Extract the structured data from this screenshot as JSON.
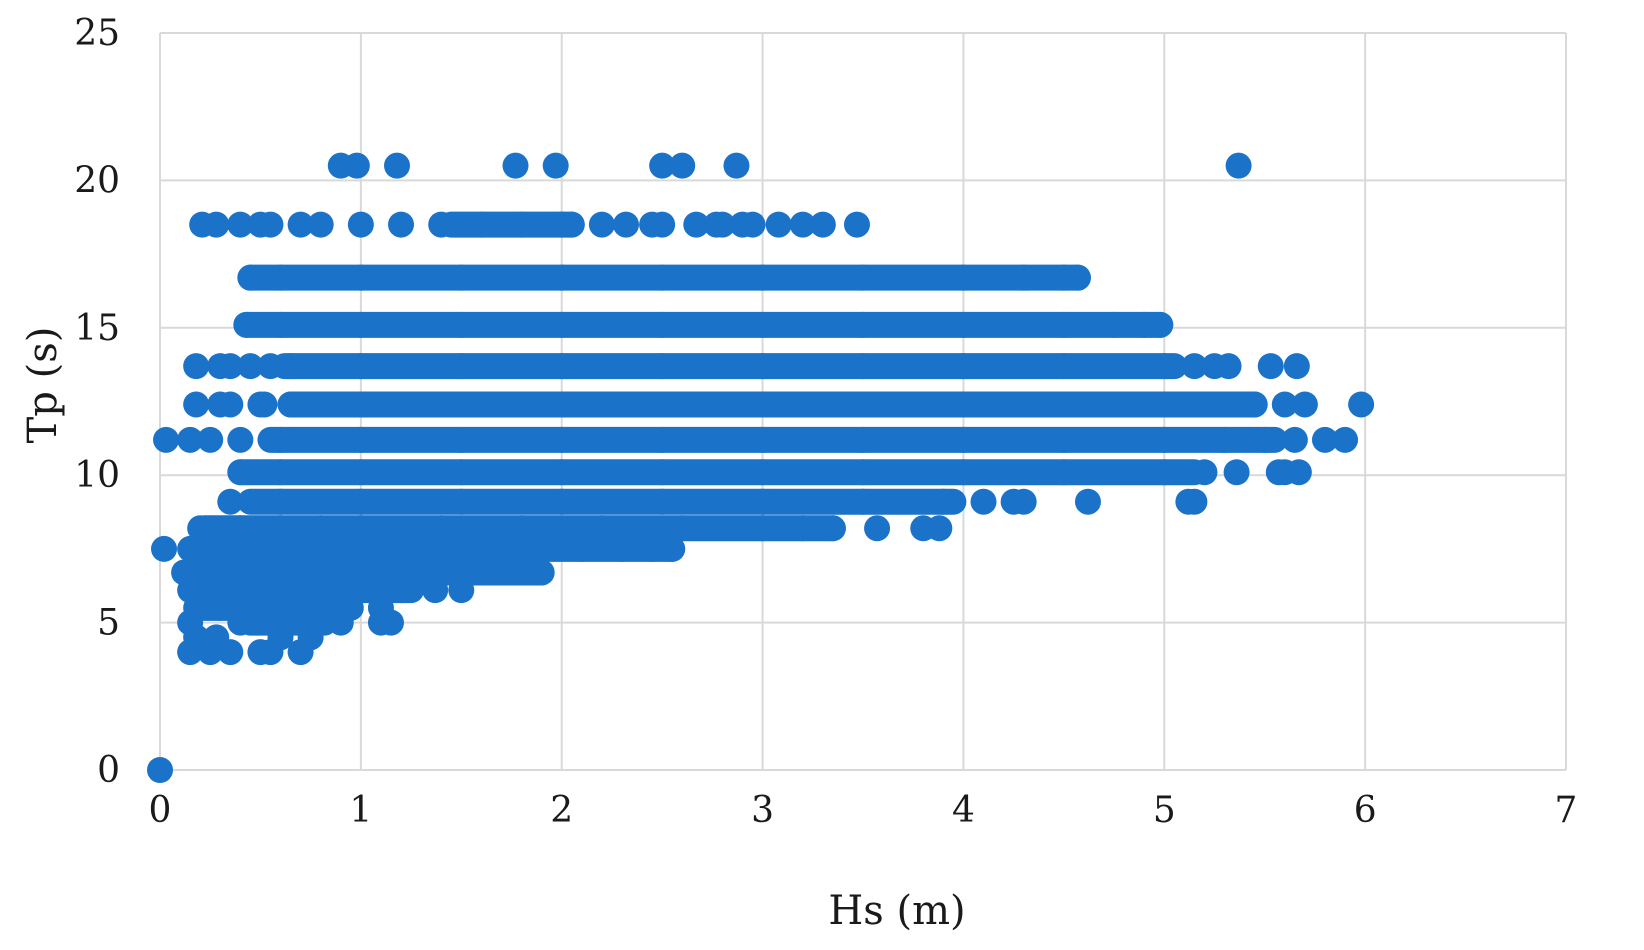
{
  "chart_data": {
    "type": "scatter",
    "title": "",
    "xlabel": "Hs (m)",
    "ylabel": "Tp (s)",
    "xlim": [
      0,
      7
    ],
    "ylim": [
      0,
      25
    ],
    "xticks": [
      0,
      1,
      2,
      3,
      4,
      5,
      6,
      7
    ],
    "yticks": [
      0,
      5,
      10,
      15,
      20,
      25
    ],
    "grid": true,
    "legend": "none",
    "colors": {
      "marker": "#1a73c8",
      "grid": "#d9d9d9",
      "text": "#1a1a1a"
    },
    "series": [
      {
        "points": [
          [
            0.0,
            0.0
          ],
          [
            0.02,
            7.5
          ],
          [
            0.15,
            7.5
          ],
          [
            0.3,
            7.5
          ],
          [
            0.5,
            7.5
          ],
          [
            0.7,
            7.5
          ],
          [
            0.9,
            7.5
          ],
          [
            1.1,
            7.5
          ],
          [
            1.3,
            7.5
          ],
          [
            1.5,
            7.5
          ],
          [
            1.7,
            7.5
          ],
          [
            1.9,
            7.5
          ],
          [
            2.1,
            7.5
          ],
          [
            2.3,
            7.5
          ],
          [
            2.45,
            7.5
          ],
          [
            2.55,
            7.5
          ],
          [
            0.03,
            11.2
          ],
          [
            0.15,
            11.2
          ],
          [
            0.25,
            11.2
          ],
          [
            0.4,
            11.2
          ],
          [
            0.6,
            11.2
          ],
          [
            1.0,
            11.2
          ],
          [
            1.5,
            11.2
          ],
          [
            2.0,
            11.2
          ],
          [
            2.5,
            11.2
          ],
          [
            3.0,
            11.2
          ],
          [
            3.5,
            11.2
          ],
          [
            4.0,
            11.2
          ],
          [
            4.5,
            11.2
          ],
          [
            5.0,
            11.2
          ],
          [
            5.3,
            11.2
          ],
          [
            5.5,
            11.2
          ],
          [
            5.65,
            11.2
          ],
          [
            5.8,
            11.2
          ],
          [
            5.9,
            11.2
          ],
          [
            0.15,
            4.0
          ],
          [
            0.25,
            4.0
          ],
          [
            0.35,
            4.0
          ],
          [
            0.5,
            4.0
          ],
          [
            0.55,
            4.0
          ],
          [
            0.7,
            4.0
          ],
          [
            0.18,
            4.5
          ],
          [
            0.28,
            4.5
          ],
          [
            0.6,
            4.5
          ],
          [
            0.75,
            4.5
          ],
          [
            0.15,
            5.0
          ],
          [
            0.4,
            5.0
          ],
          [
            0.55,
            5.0
          ],
          [
            0.7,
            5.0
          ],
          [
            0.9,
            5.0
          ],
          [
            1.1,
            5.0
          ],
          [
            1.15,
            5.0
          ],
          [
            0.18,
            5.5
          ],
          [
            0.3,
            5.5
          ],
          [
            0.5,
            5.5
          ],
          [
            0.7,
            5.5
          ],
          [
            0.9,
            5.5
          ],
          [
            1.1,
            5.5
          ],
          [
            0.15,
            6.1
          ],
          [
            0.3,
            6.1
          ],
          [
            0.5,
            6.1
          ],
          [
            0.7,
            6.1
          ],
          [
            0.9,
            6.1
          ],
          [
            1.1,
            6.1
          ],
          [
            1.2,
            6.1
          ],
          [
            1.37,
            6.1
          ],
          [
            1.5,
            6.1
          ],
          [
            0.12,
            6.7
          ],
          [
            0.3,
            6.7
          ],
          [
            0.5,
            6.7
          ],
          [
            0.7,
            6.7
          ],
          [
            0.9,
            6.7
          ],
          [
            1.1,
            6.7
          ],
          [
            1.3,
            6.7
          ],
          [
            1.5,
            6.7
          ],
          [
            1.7,
            6.7
          ],
          [
            1.9,
            6.7
          ],
          [
            0.2,
            8.2
          ],
          [
            0.4,
            8.2
          ],
          [
            0.6,
            8.2
          ],
          [
            0.8,
            8.2
          ],
          [
            1.0,
            8.2
          ],
          [
            1.4,
            8.2
          ],
          [
            1.8,
            8.2
          ],
          [
            2.2,
            8.2
          ],
          [
            2.6,
            8.2
          ],
          [
            3.0,
            8.2
          ],
          [
            3.2,
            8.2
          ],
          [
            3.35,
            8.2
          ],
          [
            3.57,
            8.2
          ],
          [
            3.8,
            8.2
          ],
          [
            3.88,
            8.2
          ],
          [
            0.35,
            9.1
          ],
          [
            0.6,
            9.1
          ],
          [
            1.0,
            9.1
          ],
          [
            1.5,
            9.1
          ],
          [
            2.0,
            9.1
          ],
          [
            2.5,
            9.1
          ],
          [
            3.0,
            9.1
          ],
          [
            3.5,
            9.1
          ],
          [
            3.9,
            9.1
          ],
          [
            4.1,
            9.1
          ],
          [
            4.25,
            9.1
          ],
          [
            4.3,
            9.1
          ],
          [
            4.62,
            9.1
          ],
          [
            5.12,
            9.1
          ],
          [
            5.15,
            9.1
          ],
          [
            0.4,
            10.1
          ],
          [
            0.6,
            10.1
          ],
          [
            1.0,
            10.1
          ],
          [
            1.5,
            10.1
          ],
          [
            2.0,
            10.1
          ],
          [
            2.5,
            10.1
          ],
          [
            3.0,
            10.1
          ],
          [
            3.5,
            10.1
          ],
          [
            4.0,
            10.1
          ],
          [
            4.5,
            10.1
          ],
          [
            5.0,
            10.1
          ],
          [
            5.2,
            10.1
          ],
          [
            5.36,
            10.1
          ],
          [
            5.57,
            10.1
          ],
          [
            5.6,
            10.1
          ],
          [
            5.67,
            10.1
          ],
          [
            0.18,
            12.4
          ],
          [
            0.3,
            12.4
          ],
          [
            0.35,
            12.4
          ],
          [
            0.5,
            12.4
          ],
          [
            0.52,
            12.4
          ],
          [
            0.65,
            12.4
          ],
          [
            1.0,
            12.4
          ],
          [
            1.5,
            12.4
          ],
          [
            2.0,
            12.4
          ],
          [
            2.5,
            12.4
          ],
          [
            3.0,
            12.4
          ],
          [
            3.5,
            12.4
          ],
          [
            4.0,
            12.4
          ],
          [
            4.5,
            12.4
          ],
          [
            5.0,
            12.4
          ],
          [
            5.3,
            12.4
          ],
          [
            5.45,
            12.4
          ],
          [
            5.6,
            12.4
          ],
          [
            5.7,
            12.4
          ],
          [
            5.98,
            12.4
          ],
          [
            0.18,
            13.7
          ],
          [
            0.3,
            13.7
          ],
          [
            0.35,
            13.7
          ],
          [
            0.45,
            13.7
          ],
          [
            0.55,
            13.7
          ],
          [
            0.65,
            13.7
          ],
          [
            1.0,
            13.7
          ],
          [
            1.5,
            13.7
          ],
          [
            2.0,
            13.7
          ],
          [
            2.5,
            13.7
          ],
          [
            3.0,
            13.7
          ],
          [
            3.5,
            13.7
          ],
          [
            4.0,
            13.7
          ],
          [
            4.5,
            13.7
          ],
          [
            5.0,
            13.7
          ],
          [
            5.15,
            13.7
          ],
          [
            5.25,
            13.7
          ],
          [
            5.32,
            13.7
          ],
          [
            5.53,
            13.7
          ],
          [
            5.66,
            13.7
          ],
          [
            0.43,
            15.1
          ],
          [
            0.6,
            15.1
          ],
          [
            1.0,
            15.1
          ],
          [
            1.5,
            15.1
          ],
          [
            2.0,
            15.1
          ],
          [
            2.5,
            15.1
          ],
          [
            3.0,
            15.1
          ],
          [
            3.5,
            15.1
          ],
          [
            4.0,
            15.1
          ],
          [
            4.5,
            15.1
          ],
          [
            4.75,
            15.1
          ],
          [
            4.9,
            15.1
          ],
          [
            4.98,
            15.1
          ],
          [
            0.45,
            16.7
          ],
          [
            0.6,
            16.7
          ],
          [
            1.0,
            16.7
          ],
          [
            1.5,
            16.7
          ],
          [
            2.0,
            16.7
          ],
          [
            2.5,
            16.7
          ],
          [
            3.0,
            16.7
          ],
          [
            3.5,
            16.7
          ],
          [
            4.0,
            16.7
          ],
          [
            4.3,
            16.7
          ],
          [
            4.5,
            16.7
          ],
          [
            4.57,
            16.7
          ],
          [
            0.21,
            18.5
          ],
          [
            0.28,
            18.5
          ],
          [
            0.4,
            18.5
          ],
          [
            0.5,
            18.5
          ],
          [
            0.55,
            18.5
          ],
          [
            0.7,
            18.5
          ],
          [
            0.8,
            18.5
          ],
          [
            1.0,
            18.5
          ],
          [
            1.2,
            18.5
          ],
          [
            1.4,
            18.5
          ],
          [
            1.6,
            18.5
          ],
          [
            1.8,
            18.5
          ],
          [
            2.0,
            18.5
          ],
          [
            2.05,
            18.5
          ],
          [
            2.2,
            18.5
          ],
          [
            2.32,
            18.5
          ],
          [
            2.45,
            18.5
          ],
          [
            2.5,
            18.5
          ],
          [
            2.67,
            18.5
          ],
          [
            2.77,
            18.5
          ],
          [
            2.8,
            18.5
          ],
          [
            2.9,
            18.5
          ],
          [
            2.95,
            18.5
          ],
          [
            3.08,
            18.5
          ],
          [
            3.2,
            18.5
          ],
          [
            3.3,
            18.5
          ],
          [
            3.47,
            18.5
          ],
          [
            0.9,
            20.5
          ],
          [
            0.98,
            20.5
          ],
          [
            1.18,
            20.5
          ],
          [
            1.77,
            20.5
          ],
          [
            1.97,
            20.5
          ],
          [
            2.5,
            20.5
          ],
          [
            2.6,
            20.5
          ],
          [
            2.87,
            20.5
          ],
          [
            5.37,
            20.5
          ]
        ],
        "bands": [
          {
            "y": 16.7,
            "x_from": 0.45,
            "x_to": 4.57
          },
          {
            "y": 15.1,
            "x_from": 0.43,
            "x_to": 4.98
          },
          {
            "y": 13.7,
            "x_from": 0.62,
            "x_to": 5.05
          },
          {
            "y": 12.4,
            "x_from": 0.65,
            "x_to": 5.45
          },
          {
            "y": 11.2,
            "x_from": 0.55,
            "x_to": 5.55
          },
          {
            "y": 10.1,
            "x_from": 0.4,
            "x_to": 5.15
          },
          {
            "y": 9.1,
            "x_from": 0.45,
            "x_to": 3.95
          },
          {
            "y": 8.2,
            "x_from": 0.22,
            "x_to": 3.35
          },
          {
            "y": 7.5,
            "x_from": 0.2,
            "x_to": 2.55
          },
          {
            "y": 6.7,
            "x_from": 0.15,
            "x_to": 1.9
          },
          {
            "y": 6.1,
            "x_from": 0.16,
            "x_to": 1.25
          },
          {
            "y": 5.5,
            "x_from": 0.2,
            "x_to": 0.95
          },
          {
            "y": 5.0,
            "x_from": 0.45,
            "x_to": 0.82
          },
          {
            "y": 18.5,
            "x_from": 1.45,
            "x_to": 2.05
          }
        ]
      }
    ]
  }
}
